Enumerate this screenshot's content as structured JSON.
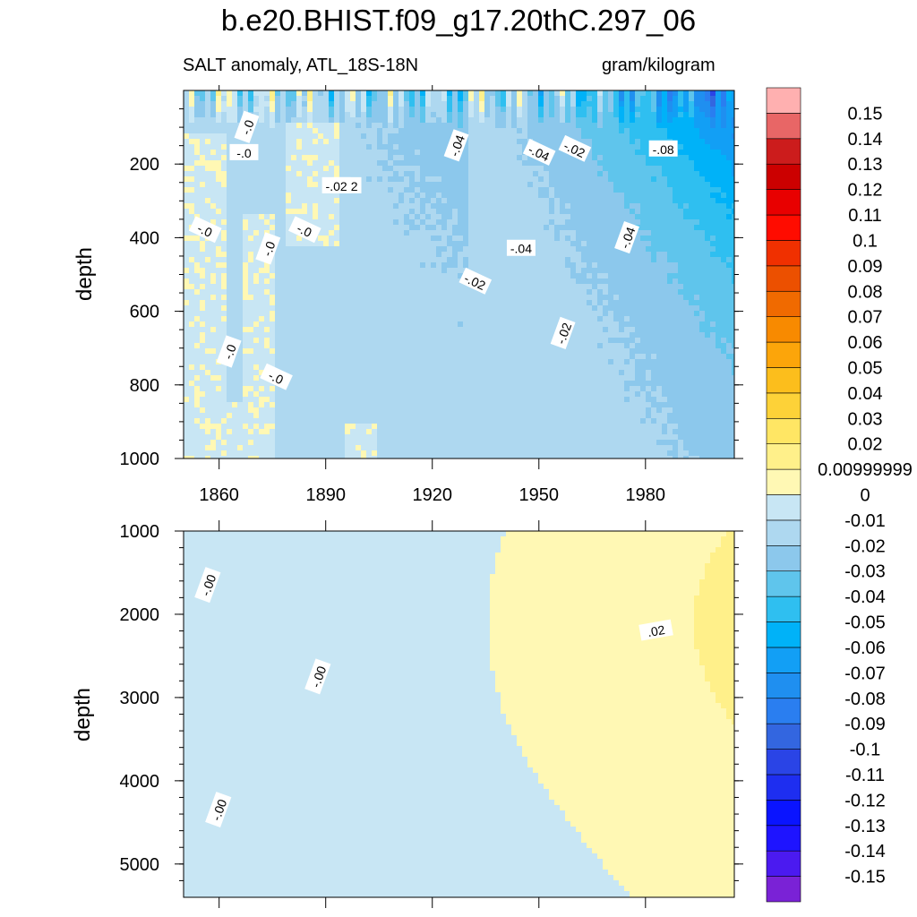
{
  "title": "b.e20.BHIST.f09_g17.20thC.297_06",
  "subtitle_left": "SALT anomaly, ATL_18S-18N",
  "subtitle_right": "gram/kilogram",
  "chart_data": [
    {
      "type": "heatmap",
      "panel": "upper",
      "variable": "SALT anomaly",
      "region": "ATL_18S-18N",
      "units": "gram/kilogram",
      "ylabel": "depth",
      "ylim": [
        1000,
        0
      ],
      "xlim": [
        1850,
        2005
      ],
      "x_ticks": [
        "1860",
        "1890",
        "1920",
        "1950",
        "1980"
      ],
      "y_ticks": [
        "200",
        "400",
        "600",
        "800",
        "1000"
      ],
      "contour_labels": [
        "-.0",
        "-.0",
        "-.02",
        "-.04",
        "-.02",
        "-.08",
        "-.02",
        "-.04",
        "-.0",
        "-.0",
        "-.0",
        "-.04",
        "-.04",
        "-.02",
        "-.02",
        "-.0",
        "-.0"
      ]
    },
    {
      "type": "heatmap",
      "panel": "lower",
      "variable": "SALT anomaly",
      "units": "gram/kilogram",
      "ylabel": "depth",
      "ylim": [
        1000,
        5400
      ],
      "xlim": [
        1850,
        2005
      ],
      "y_ticks": [
        "1000",
        "2000",
        "3000",
        "4000",
        "5000"
      ],
      "contour_labels": [
        "-.00",
        "-.00",
        "-.00",
        ".02"
      ]
    },
    {
      "type": "colorbar",
      "colors": [
        "#7a22d6",
        "#4b1af0",
        "#1e14ff",
        "#0a14ff",
        "#1e2ef0",
        "#2a44e6",
        "#3366e0",
        "#2a7ef0",
        "#1f8ff0",
        "#129ff5",
        "#00b2f8",
        "#2fbff0",
        "#5fc5ec",
        "#8cc8ec",
        "#aed8f0",
        "#c8e6f4",
        "#fff8b4",
        "#fff08a",
        "#ffe664",
        "#fdd238",
        "#fcbe1c",
        "#fca50a",
        "#f88a00",
        "#f06a00",
        "#ec5000",
        "#f03000",
        "#ff0c00",
        "#e80000",
        "#cc0000",
        "#cc1c1c",
        "#e86666",
        "#ffb0b0"
      ],
      "labels": [
        "-0.15",
        "-0.14",
        "-0.13",
        "-0.12",
        "-0.11",
        "-0.1",
        "-0.09",
        "-0.08",
        "-0.07",
        "-0.06",
        "-0.05",
        "-0.04",
        "-0.03",
        "-0.02",
        "-0.01",
        "0",
        "0.00999999",
        "0.02",
        "0.03",
        "0.04",
        "0.05",
        "0.06",
        "0.07",
        "0.08",
        "0.09",
        "0.1",
        "0.11",
        "0.12",
        "0.13",
        "0.14",
        "0.15"
      ]
    }
  ]
}
